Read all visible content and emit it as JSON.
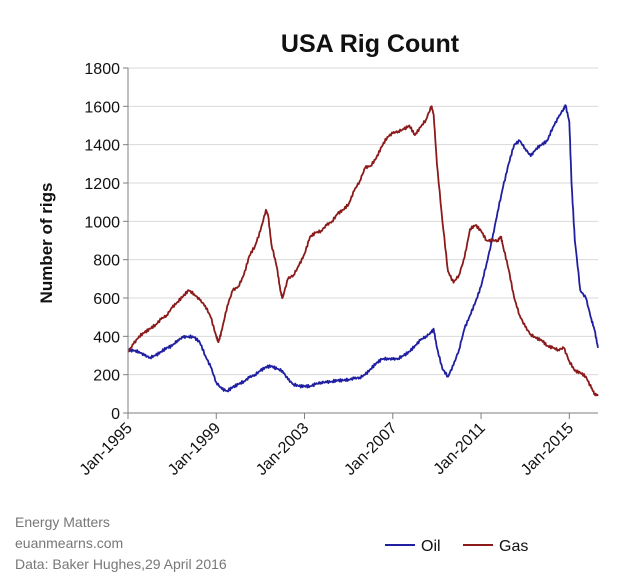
{
  "credits": [
    "Energy Matters",
    "euanmearns.com",
    "Data: Baker Hughes,29 April 2016"
  ],
  "colors": {
    "oil": "#1f1fa0",
    "gas": "#8b1a1a",
    "grid": "#d9d9d9",
    "axis": "#7f7f7f"
  },
  "chart_data": {
    "type": "line",
    "title": "USA Rig Count",
    "xlabel": "",
    "ylabel": "Number of rigs",
    "xlim": [
      1995.0,
      2016.3
    ],
    "ylim": [
      0,
      1800
    ],
    "yticks": [
      0,
      200,
      400,
      600,
      800,
      1000,
      1200,
      1400,
      1600,
      1800
    ],
    "xtick_values": [
      1995,
      1999,
      2003,
      2007,
      2011,
      2015
    ],
    "xtick_labels": [
      "Jan-1995",
      "Jan-1999",
      "Jan-2003",
      "Jan-2007",
      "Jan-2011",
      "Jan-2015"
    ],
    "grid": "horizontal",
    "legend": "bottom-right",
    "series": [
      {
        "name": "Oil",
        "color": "#1f1fa0",
        "points": [
          [
            1995.0,
            330
          ],
          [
            1995.25,
            325
          ],
          [
            1995.5,
            320
          ],
          [
            1995.75,
            300
          ],
          [
            1996.0,
            290
          ],
          [
            1996.25,
            300
          ],
          [
            1996.5,
            320
          ],
          [
            1996.75,
            340
          ],
          [
            1997.0,
            350
          ],
          [
            1997.25,
            380
          ],
          [
            1997.5,
            395
          ],
          [
            1997.75,
            400
          ],
          [
            1998.0,
            395
          ],
          [
            1998.25,
            370
          ],
          [
            1998.5,
            300
          ],
          [
            1998.75,
            240
          ],
          [
            1999.0,
            160
          ],
          [
            1999.25,
            125
          ],
          [
            1999.5,
            115
          ],
          [
            1999.75,
            135
          ],
          [
            2000.0,
            150
          ],
          [
            2000.25,
            165
          ],
          [
            2000.5,
            185
          ],
          [
            2000.75,
            200
          ],
          [
            2001.0,
            220
          ],
          [
            2001.25,
            240
          ],
          [
            2001.5,
            245
          ],
          [
            2001.75,
            230
          ],
          [
            2002.0,
            220
          ],
          [
            2002.25,
            175
          ],
          [
            2002.5,
            150
          ],
          [
            2002.75,
            140
          ],
          [
            2003.0,
            140
          ],
          [
            2003.25,
            140
          ],
          [
            2003.5,
            150
          ],
          [
            2003.75,
            160
          ],
          [
            2004.0,
            160
          ],
          [
            2004.25,
            165
          ],
          [
            2004.5,
            170
          ],
          [
            2004.75,
            170
          ],
          [
            2005.0,
            175
          ],
          [
            2005.25,
            180
          ],
          [
            2005.5,
            185
          ],
          [
            2005.75,
            200
          ],
          [
            2006.0,
            230
          ],
          [
            2006.25,
            260
          ],
          [
            2006.5,
            280
          ],
          [
            2006.75,
            285
          ],
          [
            2007.0,
            280
          ],
          [
            2007.25,
            285
          ],
          [
            2007.5,
            300
          ],
          [
            2007.75,
            320
          ],
          [
            2008.0,
            350
          ],
          [
            2008.25,
            380
          ],
          [
            2008.5,
            400
          ],
          [
            2008.75,
            420
          ],
          [
            2008.85,
            440
          ],
          [
            2009.0,
            340
          ],
          [
            2009.25,
            230
          ],
          [
            2009.5,
            190
          ],
          [
            2009.75,
            250
          ],
          [
            2010.0,
            330
          ],
          [
            2010.25,
            440
          ],
          [
            2010.5,
            510
          ],
          [
            2010.75,
            580
          ],
          [
            2011.0,
            660
          ],
          [
            2011.25,
            780
          ],
          [
            2011.5,
            900
          ],
          [
            2011.75,
            1050
          ],
          [
            2012.0,
            1180
          ],
          [
            2012.25,
            1300
          ],
          [
            2012.5,
            1400
          ],
          [
            2012.75,
            1420
          ],
          [
            2013.0,
            1380
          ],
          [
            2013.25,
            1340
          ],
          [
            2013.5,
            1380
          ],
          [
            2013.75,
            1400
          ],
          [
            2014.0,
            1420
          ],
          [
            2014.25,
            1490
          ],
          [
            2014.5,
            1540
          ],
          [
            2014.75,
            1590
          ],
          [
            2014.83,
            1605
          ],
          [
            2015.0,
            1520
          ],
          [
            2015.1,
            1200
          ],
          [
            2015.25,
            900
          ],
          [
            2015.5,
            640
          ],
          [
            2015.75,
            600
          ],
          [
            2016.0,
            490
          ],
          [
            2016.15,
            430
          ],
          [
            2016.3,
            340
          ]
        ]
      },
      {
        "name": "Gas",
        "color": "#8b1a1a",
        "points": [
          [
            1995.0,
            320
          ],
          [
            1995.25,
            360
          ],
          [
            1995.5,
            400
          ],
          [
            1995.75,
            420
          ],
          [
            1996.0,
            440
          ],
          [
            1996.25,
            460
          ],
          [
            1996.5,
            490
          ],
          [
            1996.75,
            510
          ],
          [
            1997.0,
            550
          ],
          [
            1997.25,
            580
          ],
          [
            1997.5,
            610
          ],
          [
            1997.75,
            640
          ],
          [
            1998.0,
            620
          ],
          [
            1998.25,
            590
          ],
          [
            1998.5,
            560
          ],
          [
            1998.75,
            500
          ],
          [
            1999.0,
            400
          ],
          [
            1999.1,
            370
          ],
          [
            1999.25,
            430
          ],
          [
            1999.5,
            560
          ],
          [
            1999.75,
            640
          ],
          [
            2000.0,
            660
          ],
          [
            2000.25,
            720
          ],
          [
            2000.5,
            820
          ],
          [
            2000.75,
            870
          ],
          [
            2001.0,
            950
          ],
          [
            2001.25,
            1060
          ],
          [
            2001.35,
            1030
          ],
          [
            2001.5,
            880
          ],
          [
            2001.75,
            760
          ],
          [
            2001.9,
            640
          ],
          [
            2002.0,
            600
          ],
          [
            2002.25,
            700
          ],
          [
            2002.5,
            720
          ],
          [
            2002.75,
            770
          ],
          [
            2003.0,
            830
          ],
          [
            2003.25,
            920
          ],
          [
            2003.5,
            940
          ],
          [
            2003.75,
            950
          ],
          [
            2004.0,
            980
          ],
          [
            2004.25,
            1000
          ],
          [
            2004.5,
            1040
          ],
          [
            2004.75,
            1060
          ],
          [
            2005.0,
            1090
          ],
          [
            2005.25,
            1160
          ],
          [
            2005.5,
            1210
          ],
          [
            2005.75,
            1280
          ],
          [
            2006.0,
            1290
          ],
          [
            2006.25,
            1330
          ],
          [
            2006.5,
            1390
          ],
          [
            2006.75,
            1440
          ],
          [
            2007.0,
            1460
          ],
          [
            2007.25,
            1470
          ],
          [
            2007.5,
            1480
          ],
          [
            2007.75,
            1500
          ],
          [
            2008.0,
            1450
          ],
          [
            2008.25,
            1490
          ],
          [
            2008.5,
            1530
          ],
          [
            2008.75,
            1600
          ],
          [
            2008.85,
            1560
          ],
          [
            2009.0,
            1300
          ],
          [
            2009.25,
            1000
          ],
          [
            2009.5,
            740
          ],
          [
            2009.75,
            680
          ],
          [
            2010.0,
            720
          ],
          [
            2010.25,
            810
          ],
          [
            2010.5,
            960
          ],
          [
            2010.75,
            980
          ],
          [
            2011.0,
            950
          ],
          [
            2011.25,
            900
          ],
          [
            2011.5,
            900
          ],
          [
            2011.75,
            900
          ],
          [
            2011.9,
            920
          ],
          [
            2012.0,
            870
          ],
          [
            2012.25,
            750
          ],
          [
            2012.5,
            600
          ],
          [
            2012.75,
            510
          ],
          [
            2013.0,
            450
          ],
          [
            2013.25,
            410
          ],
          [
            2013.5,
            390
          ],
          [
            2013.75,
            380
          ],
          [
            2014.0,
            350
          ],
          [
            2014.25,
            340
          ],
          [
            2014.5,
            330
          ],
          [
            2014.75,
            340
          ],
          [
            2015.0,
            270
          ],
          [
            2015.25,
            220
          ],
          [
            2015.5,
            210
          ],
          [
            2015.75,
            190
          ],
          [
            2016.0,
            130
          ],
          [
            2016.15,
            100
          ],
          [
            2016.3,
            90
          ]
        ]
      }
    ]
  }
}
